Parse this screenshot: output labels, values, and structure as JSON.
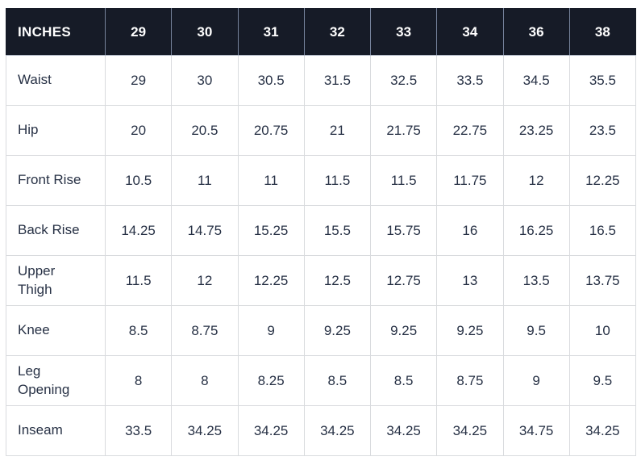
{
  "chart_data": {
    "type": "table",
    "header": {
      "label": "INCHES",
      "sizes": [
        "29",
        "30",
        "31",
        "32",
        "33",
        "34",
        "36",
        "38"
      ]
    },
    "rows": [
      {
        "label": "Waist",
        "values": [
          "29",
          "30",
          "30.5",
          "31.5",
          "32.5",
          "33.5",
          "34.5",
          "35.5"
        ]
      },
      {
        "label": "Hip",
        "values": [
          "20",
          "20.5",
          "20.75",
          "21",
          "21.75",
          "22.75",
          "23.25",
          "23.5"
        ]
      },
      {
        "label": "Front Rise",
        "values": [
          "10.5",
          "11",
          "11",
          "11.5",
          "11.5",
          "11.75",
          "12",
          "12.25"
        ]
      },
      {
        "label": "Back Rise",
        "values": [
          "14.25",
          "14.75",
          "15.25",
          "15.5",
          "15.75",
          "16",
          "16.25",
          "16.5"
        ]
      },
      {
        "label": "Upper Thigh",
        "values": [
          "11.5",
          "12",
          "12.25",
          "12.5",
          "12.75",
          "13",
          "13.5",
          "13.75"
        ]
      },
      {
        "label": "Knee",
        "values": [
          "8.5",
          "8.75",
          "9",
          "9.25",
          "9.25",
          "9.25",
          "9.5",
          "10"
        ]
      },
      {
        "label": "Leg Opening",
        "values": [
          "8",
          "8",
          "8.25",
          "8.5",
          "8.5",
          "8.75",
          "9",
          "9.5"
        ]
      },
      {
        "label": "Inseam",
        "values": [
          "33.5",
          "34.25",
          "34.25",
          "34.25",
          "34.25",
          "34.25",
          "34.75",
          "34.25"
        ]
      }
    ]
  },
  "colors": {
    "header_bg": "#161b27",
    "header_text": "#ffffff",
    "header_divider": "#76839c",
    "body_text": "#273145",
    "grid_line": "#d9dbde",
    "page_bg": "#ffffff"
  }
}
